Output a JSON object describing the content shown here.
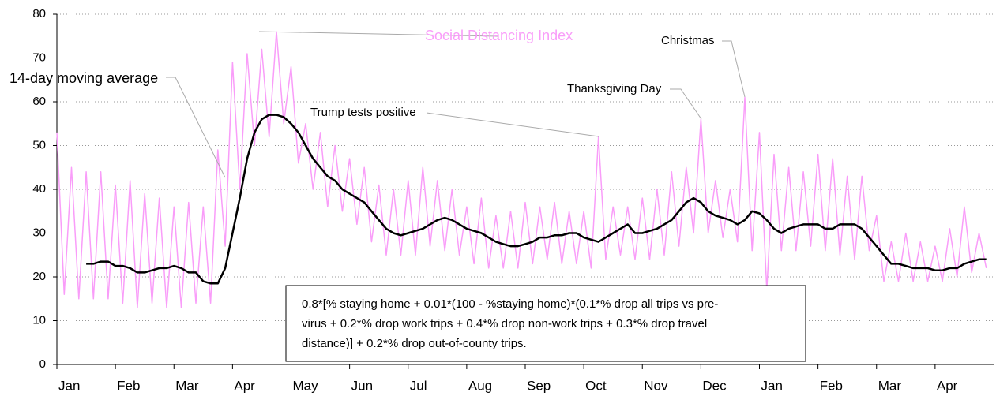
{
  "chart_data": {
    "type": "line",
    "categories": [
      "Jan",
      null,
      null,
      null,
      null,
      null,
      null,
      null,
      "Feb",
      null,
      null,
      null,
      null,
      null,
      null,
      null,
      "Mar",
      null,
      null,
      null,
      null,
      null,
      null,
      null,
      "Apr",
      null,
      null,
      null,
      null,
      null,
      null,
      null,
      "May",
      null,
      null,
      null,
      null,
      null,
      null,
      null,
      "Jun",
      null,
      null,
      null,
      null,
      null,
      null,
      null,
      "Jul",
      null,
      null,
      null,
      null,
      null,
      null,
      null,
      "Aug",
      null,
      null,
      null,
      null,
      null,
      null,
      null,
      "Sep",
      null,
      null,
      null,
      null,
      null,
      null,
      null,
      "Oct",
      null,
      null,
      null,
      null,
      null,
      null,
      null,
      "Nov",
      null,
      null,
      null,
      null,
      null,
      null,
      null,
      "Dec",
      null,
      null,
      null,
      null,
      null,
      null,
      null,
      "Jan",
      null,
      null,
      null,
      null,
      null,
      null,
      null,
      "Feb",
      null,
      null,
      null,
      null,
      null,
      null,
      null,
      "Mar",
      null,
      null,
      null,
      null,
      null,
      null,
      null,
      "Apr",
      null,
      null,
      null,
      null,
      null,
      null,
      null
    ],
    "series": [
      {
        "name": "Social Distancing Index",
        "color": "#f99df9",
        "width": 1.5,
        "values": [
          53,
          16,
          45,
          15,
          44,
          15,
          44,
          15,
          41,
          14,
          42,
          13,
          39,
          14,
          38,
          13,
          36,
          13,
          37,
          14,
          36,
          14,
          49,
          27,
          69,
          40,
          71,
          50,
          72,
          52,
          76,
          55,
          68,
          46,
          55,
          40,
          53,
          36,
          50,
          35,
          47,
          32,
          45,
          28,
          41,
          25,
          40,
          25,
          42,
          25,
          45,
          27,
          42,
          26,
          40,
          25,
          36,
          23,
          38,
          22,
          34,
          22,
          35,
          22,
          37,
          23,
          36,
          24,
          37,
          23,
          35,
          23,
          35,
          22,
          52,
          24,
          36,
          25,
          36,
          24,
          38,
          24,
          40,
          25,
          44,
          27,
          45,
          30,
          56,
          30,
          42,
          29,
          40,
          28,
          61,
          26,
          53,
          17,
          48,
          26,
          45,
          26,
          44,
          27,
          48,
          26,
          47,
          25,
          43,
          24,
          43,
          26,
          34,
          19,
          28,
          19,
          30,
          19,
          28,
          19,
          27,
          19,
          31,
          20,
          36,
          21,
          30,
          22
        ]
      },
      {
        "name": "14-day moving average",
        "color": "#000000",
        "width": 2.5,
        "values": [
          null,
          null,
          null,
          null,
          23,
          23,
          23.5,
          23.5,
          22.5,
          22.5,
          22,
          21,
          21,
          21.5,
          22,
          22,
          22.5,
          22,
          21,
          21,
          19,
          18.5,
          18.5,
          22,
          30,
          38,
          47,
          53,
          56,
          57,
          57,
          56.5,
          55,
          53,
          50,
          47,
          45,
          43,
          42,
          40,
          39,
          38,
          37,
          35,
          33,
          31,
          30,
          29.5,
          30,
          30.5,
          31,
          32,
          33,
          33.5,
          33,
          32,
          31,
          30.5,
          30,
          29,
          28,
          27.5,
          27,
          27,
          27.5,
          28,
          29,
          29,
          29.5,
          29.5,
          30,
          30,
          29,
          28.5,
          28,
          29,
          30,
          31,
          32,
          30,
          30,
          30.5,
          31,
          32,
          33,
          35,
          37,
          38,
          37,
          35,
          34,
          33.5,
          33,
          32,
          33,
          35,
          34.5,
          33,
          31,
          30,
          31,
          31.5,
          32,
          32,
          32,
          31,
          31,
          32,
          32,
          32,
          31,
          29,
          27,
          25,
          23,
          23,
          22.5,
          22,
          22,
          22,
          21.5,
          21.5,
          22,
          22,
          23,
          23.5,
          24,
          24
        ]
      }
    ],
    "ylim": [
      0,
      80
    ],
    "yticks": [
      0,
      10,
      20,
      30,
      40,
      50,
      60,
      70,
      80
    ],
    "grid": true,
    "annotations": [
      "Trump tests positive",
      "Thanksgiving Day",
      "Christmas"
    ],
    "note": [
      "0.8*[% staying home + 0.01*(100 - %staying home)*(0.1*% drop all trips vs pre-",
      "virus + 0.2*% drop work trips + 0.4*% drop non-work trips + 0.3*% drop travel",
      "distance)] + 0.2*% drop out-of-county trips."
    ]
  }
}
